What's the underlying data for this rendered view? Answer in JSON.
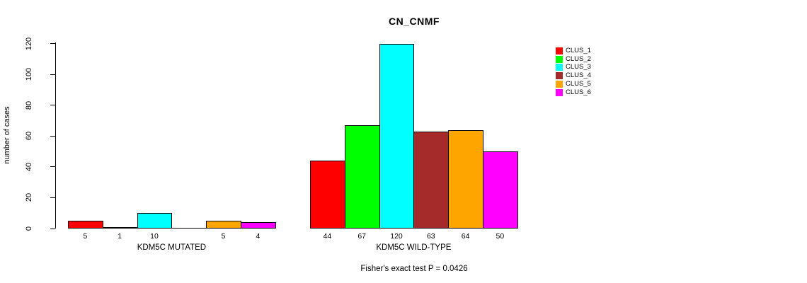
{
  "title": "CN_CNMF",
  "y_axis": {
    "label": "number of cases",
    "ticks": [
      0,
      20,
      40,
      60,
      80,
      100,
      120
    ]
  },
  "footer": {
    "fisher_text": "Fisher's exact test P = 0.0426"
  },
  "legend": {
    "items": [
      {
        "label": "CLUS_1",
        "color": "#FF0000"
      },
      {
        "label": "CLUS_2",
        "color": "#00FF00"
      },
      {
        "label": "CLUS_3",
        "color": "#00FFFF"
      },
      {
        "label": "CLUS_4",
        "color": "#A52A2A"
      },
      {
        "label": "CLUS_5",
        "color": "#FFA500"
      },
      {
        "label": "CLUS_6",
        "color": "#FF00FF"
      }
    ]
  },
  "chart_data": {
    "type": "bar",
    "title": "CN_CNMF",
    "xlabel": "",
    "ylabel": "number of cases",
    "ylim": [
      0,
      120
    ],
    "grid": false,
    "legend_position": "top-right",
    "series_labels": [
      "CLUS_1",
      "CLUS_2",
      "CLUS_3",
      "CLUS_4",
      "CLUS_5",
      "CLUS_6"
    ],
    "series_colors": [
      "#FF0000",
      "#00FF00",
      "#00FFFF",
      "#A52A2A",
      "#FFA500",
      "#FF00FF"
    ],
    "groups": [
      {
        "label": "KDM5C MUTATED",
        "values": [
          5,
          1,
          10,
          0,
          5,
          4
        ]
      },
      {
        "label": "KDM5C WILD-TYPE",
        "values": [
          44,
          67,
          120,
          63,
          64,
          50
        ]
      }
    ],
    "annotation": "Fisher's exact test P = 0.0426",
    "notes": "zero-value bars drawn as flat line with no value label"
  }
}
